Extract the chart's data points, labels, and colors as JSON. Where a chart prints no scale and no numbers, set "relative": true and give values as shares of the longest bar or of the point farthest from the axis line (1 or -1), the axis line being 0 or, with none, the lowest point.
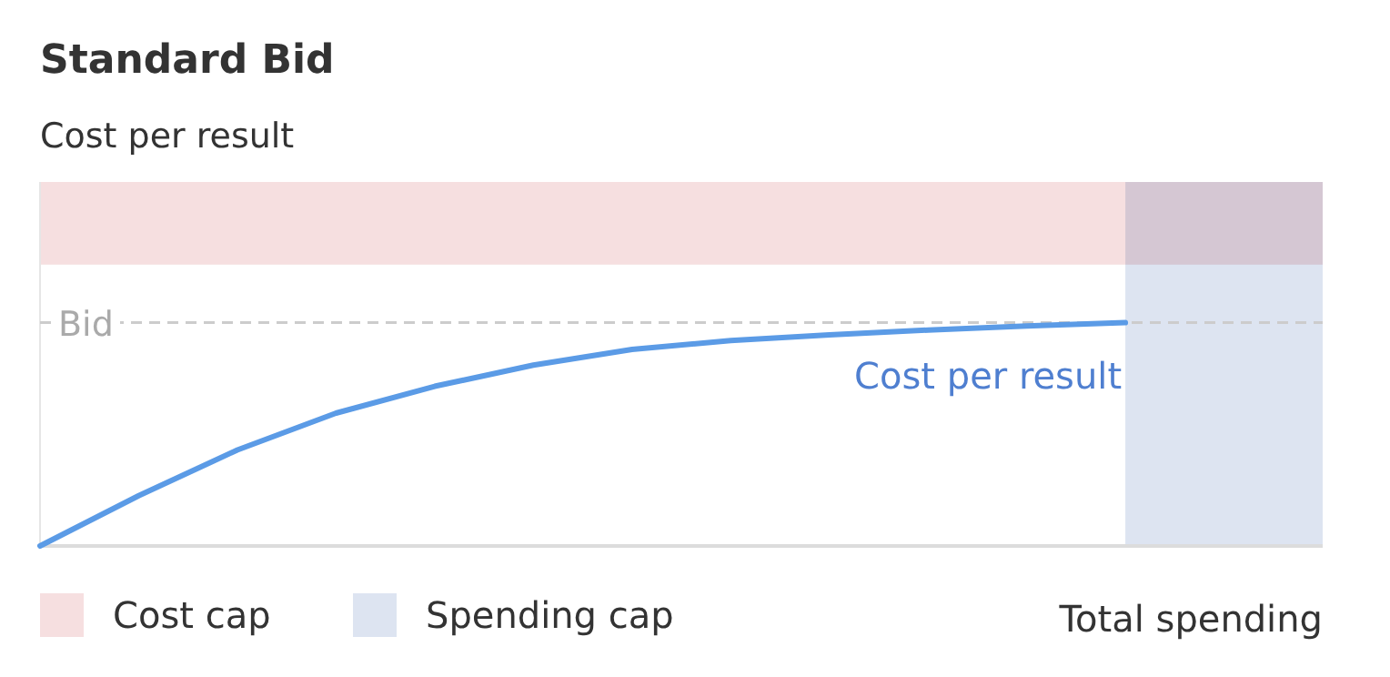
{
  "chart_data": {
    "type": "line",
    "title": "Standard Bid",
    "ylabel": "Cost per result",
    "xlabel": "Total spending",
    "relative": true,
    "marker": "none",
    "line_style": "solid",
    "categories": [
      null,
      null,
      null,
      null,
      null,
      null,
      null,
      null,
      null,
      null,
      null,
      null,
      null,
      null
    ],
    "series": [
      {
        "name": "Cost per result",
        "color": "#5b9be6",
        "values": [
          0,
          0.225,
          0.43,
          0.595,
          0.715,
          0.81,
          0.88,
          0.92,
          0.945,
          0.967,
          0.985,
          1,
          null,
          null
        ]
      }
    ],
    "ref_lines": [
      {
        "axis": "y",
        "value": 1,
        "label": "Bid",
        "color": "#cccccc",
        "line_style": "dashed"
      }
    ],
    "annotations": [
      "Spending cap"
    ],
    "bands": [
      {
        "axis": "y",
        "from": 1.26,
        "to": 1.63,
        "label": "Cost cap",
        "color": "#f6dfe0"
      }
    ]
  }
}
